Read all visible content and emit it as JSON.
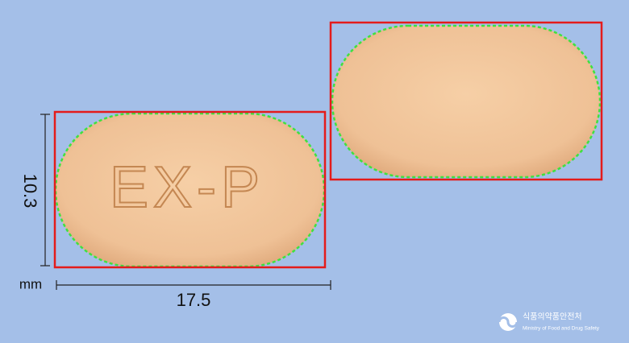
{
  "imprint": "EX-P",
  "dimensions": {
    "height": 10.3,
    "width": 17.5,
    "unit": "mm"
  },
  "logo": {
    "korean": "식품의약품안전처",
    "english": "Ministry of Food and Drug Safety"
  }
}
